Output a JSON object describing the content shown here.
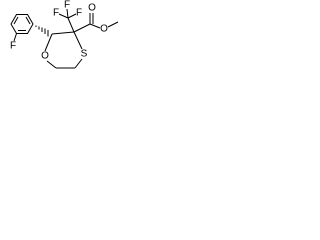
{
  "atoms": [
    {
      "label": "F"
    },
    {
      "label": "F"
    },
    {
      "label": "F"
    },
    {
      "label": "F"
    },
    {
      "label": "O"
    },
    {
      "label": "O"
    },
    {
      "label": "O"
    },
    {
      "label": "S"
    }
  ]
}
